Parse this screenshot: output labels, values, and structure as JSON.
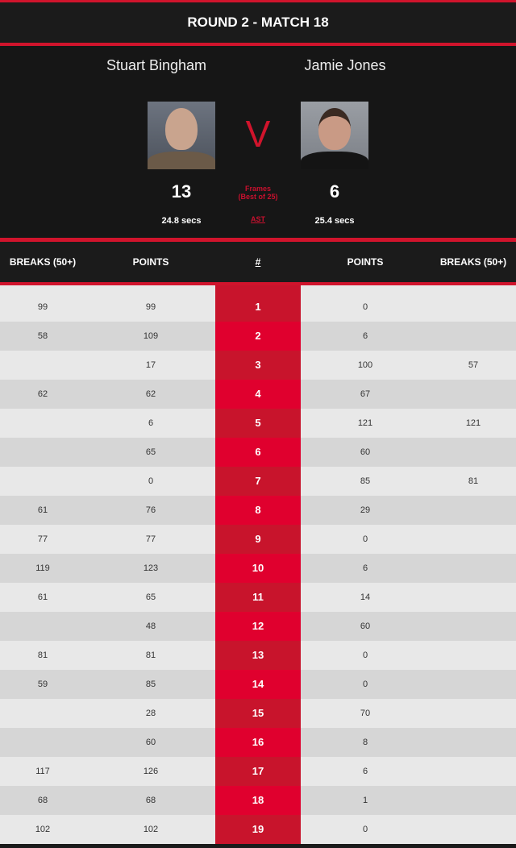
{
  "title": "ROUND 2 - MATCH 18",
  "player1": {
    "name": "Stuart Bingham",
    "frames": "13",
    "shot_time": "24.8 secs"
  },
  "player2": {
    "name": "Jamie Jones",
    "frames": "6",
    "shot_time": "25.4 secs"
  },
  "vs": "V",
  "frames_label": "Frames",
  "best_of": "(Best of 25)",
  "ast_label": "AST",
  "headers": [
    "BREAKS (50+)",
    "POINTS",
    "#",
    "POINTS",
    "BREAKS (50+)"
  ],
  "colors": {
    "accent": "#d0142c",
    "dark": "#1a1a1a"
  },
  "rows": [
    [
      "99",
      "99",
      "1",
      "0",
      ""
    ],
    [
      "58",
      "109",
      "2",
      "6",
      ""
    ],
    [
      "",
      "17",
      "3",
      "100",
      "57"
    ],
    [
      "62",
      "62",
      "4",
      "67",
      ""
    ],
    [
      "",
      "6",
      "5",
      "121",
      "121"
    ],
    [
      "",
      "65",
      "6",
      "60",
      ""
    ],
    [
      "",
      "0",
      "7",
      "85",
      "81"
    ],
    [
      "61",
      "76",
      "8",
      "29",
      ""
    ],
    [
      "77",
      "77",
      "9",
      "0",
      ""
    ],
    [
      "119",
      "123",
      "10",
      "6",
      ""
    ],
    [
      "61",
      "65",
      "11",
      "14",
      ""
    ],
    [
      "",
      "48",
      "12",
      "60",
      ""
    ],
    [
      "81",
      "81",
      "13",
      "0",
      ""
    ],
    [
      "59",
      "85",
      "14",
      "0",
      ""
    ],
    [
      "",
      "28",
      "15",
      "70",
      ""
    ],
    [
      "",
      "60",
      "16",
      "8",
      ""
    ],
    [
      "117",
      "126",
      "17",
      "6",
      ""
    ],
    [
      "68",
      "68",
      "18",
      "1",
      ""
    ],
    [
      "102",
      "102",
      "19",
      "0",
      ""
    ]
  ]
}
